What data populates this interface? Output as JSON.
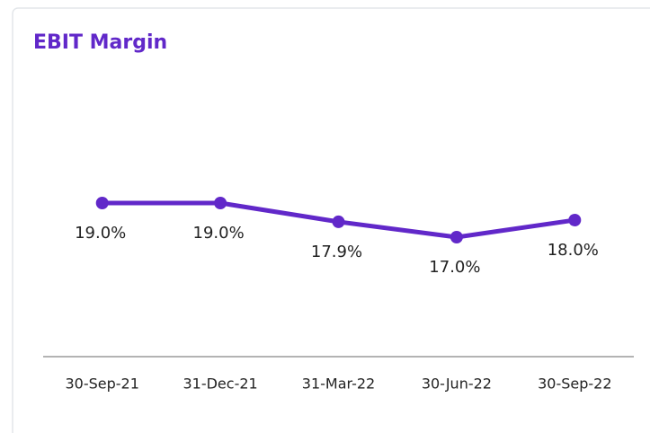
{
  "chart_data": {
    "type": "line",
    "title": "EBIT Margin",
    "categories": [
      "30-Sep-21",
      "31-Dec-21",
      "31-Mar-22",
      "30-Jun-22",
      "30-Sep-22"
    ],
    "series": [
      {
        "color": "#6128c9",
        "values": [
          19.0,
          19.0,
          17.9,
          17.0,
          18.0
        ],
        "value_labels": [
          "19.0%",
          "19.0%",
          "17.9%",
          "17.0%",
          "18.0%"
        ]
      }
    ]
  }
}
